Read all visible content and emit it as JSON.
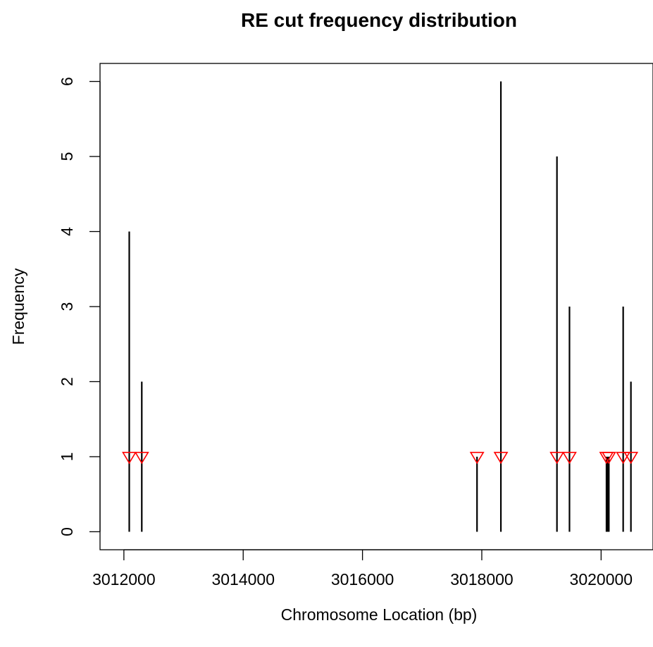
{
  "chart_data": {
    "type": "scatter",
    "title": "RE cut frequency distribution",
    "xlabel": "Chromosome Location (bp)",
    "ylabel": "Frequency",
    "xlim": [
      3011600,
      3020870
    ],
    "ylim": [
      -0.24,
      6.24
    ],
    "xticks": [
      3012000,
      3014000,
      3016000,
      3018000,
      3020000
    ],
    "yticks": [
      0,
      1,
      2,
      3,
      4,
      5,
      6
    ],
    "grid": false,
    "legend": "none",
    "frequency_lines": {
      "color": "#000000",
      "points": [
        {
          "x": 3012090,
          "y": 4
        },
        {
          "x": 3012300,
          "y": 2
        },
        {
          "x": 3017920,
          "y": 1
        },
        {
          "x": 3018320,
          "y": 6
        },
        {
          "x": 3019260,
          "y": 5
        },
        {
          "x": 3019470,
          "y": 3
        },
        {
          "x": 3020090,
          "y": 1
        },
        {
          "x": 3020110,
          "y": 1
        },
        {
          "x": 3020130,
          "y": 1
        },
        {
          "x": 3020370,
          "y": 3
        },
        {
          "x": 3020500,
          "y": 2
        }
      ]
    },
    "cut_site_markers": {
      "color": "#ff0000",
      "shape": "down-triangle",
      "points": [
        {
          "x": 3012090,
          "y": 1
        },
        {
          "x": 3012300,
          "y": 1
        },
        {
          "x": 3017920,
          "y": 1
        },
        {
          "x": 3018320,
          "y": 1
        },
        {
          "x": 3019260,
          "y": 1
        },
        {
          "x": 3019470,
          "y": 1
        },
        {
          "x": 3020090,
          "y": 1
        },
        {
          "x": 3020130,
          "y": 1
        },
        {
          "x": 3020370,
          "y": 1
        },
        {
          "x": 3020500,
          "y": 1
        }
      ]
    }
  }
}
